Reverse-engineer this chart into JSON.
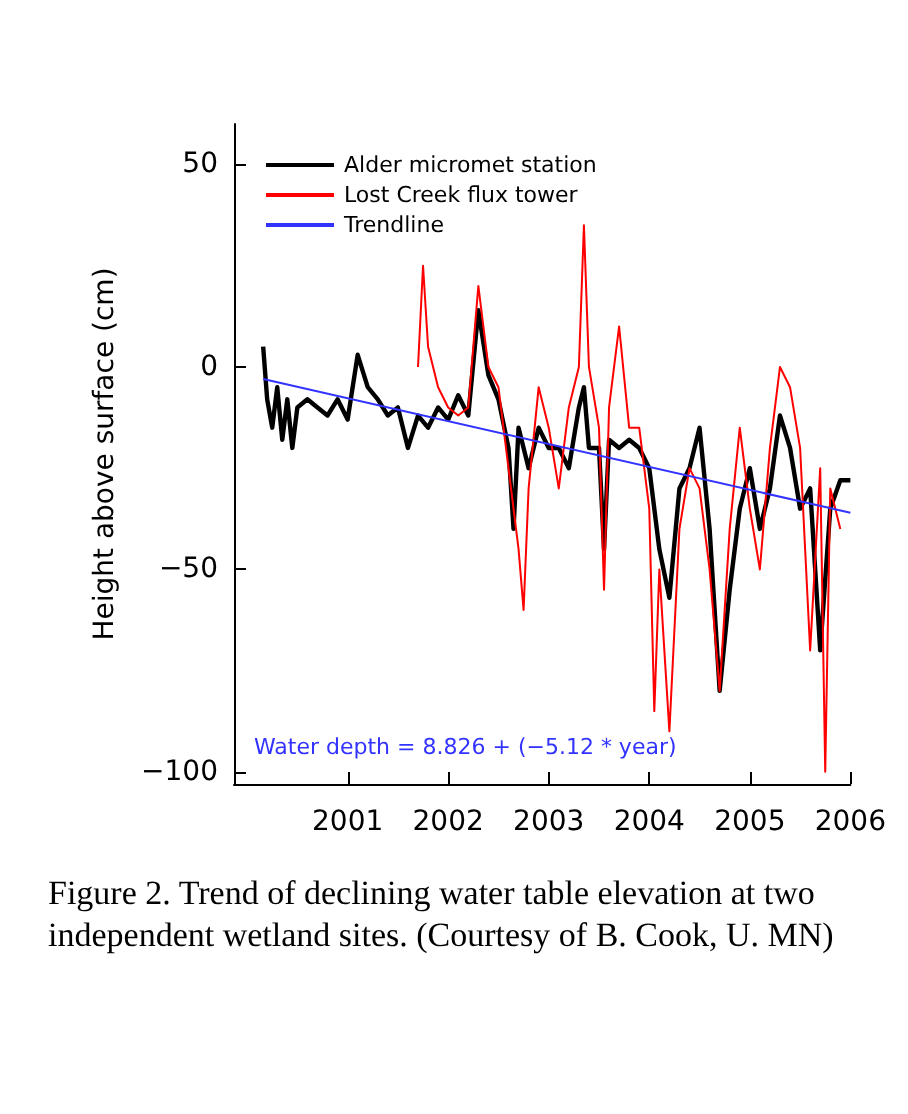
{
  "chart_data": {
    "type": "line",
    "ylabel": "Height above surface (cm)",
    "xlim": [
      1999.87,
      2006.0
    ],
    "ylim": [
      -103,
      60
    ],
    "xticks": [
      2001,
      2002,
      2003,
      2004,
      2005,
      2006
    ],
    "yticks": [
      -100,
      -50,
      0,
      50
    ],
    "grid": false,
    "legend": "top left",
    "marker": "none",
    "line_style": "solid",
    "annotations": [
      "Water depth = 8.826 + (−5.12 * year)",
      "Figure 2. Trend of declining water table elevation at two independent wetland sites. (Courtesy of B. Cook, U. MN)"
    ],
    "series": [
      {
        "name": "Alder micromet station",
        "color": "#000000",
        "x": [
          2000.16,
          2000.2,
          2000.25,
          2000.3,
          2000.35,
          2000.4,
          2000.45,
          2000.5,
          2000.6,
          2000.7,
          2000.8,
          2000.9,
          2001.0,
          2001.1,
          2001.2,
          2001.3,
          2001.4,
          2001.5,
          2001.6,
          2001.7,
          2001.8,
          2001.9,
          2002.0,
          2002.1,
          2002.2,
          2002.3,
          2002.4,
          2002.5,
          2002.6,
          2002.65,
          2002.7,
          2002.8,
          2002.9,
          2003.0,
          2003.1,
          2003.2,
          2003.3,
          2003.35,
          2003.4,
          2003.5,
          2003.55,
          2003.6,
          2003.7,
          2003.8,
          2003.9,
          2004.0,
          2004.1,
          2004.2,
          2004.3,
          2004.4,
          2004.5,
          2004.6,
          2004.7,
          2004.8,
          2004.9,
          2005.0,
          2005.1,
          2005.2,
          2005.3,
          2005.4,
          2005.5,
          2005.6,
          2005.7,
          2005.8,
          2005.9,
          2006.0
        ],
        "values": [
          5,
          -8,
          -15,
          -5,
          -18,
          -8,
          -20,
          -10,
          -8,
          -10,
          -12,
          -8,
          -13,
          3,
          -5,
          -8,
          -12,
          -10,
          -20,
          -12,
          -15,
          -10,
          -13,
          -7,
          -12,
          14,
          -2,
          -8,
          -20,
          -40,
          -15,
          -25,
          -15,
          -20,
          -20,
          -25,
          -10,
          -5,
          -20,
          -20,
          -45,
          -18,
          -20,
          -18,
          -20,
          -25,
          -45,
          -57,
          -30,
          -25,
          -15,
          -40,
          -80,
          -55,
          -35,
          -25,
          -40,
          -30,
          -12,
          -20,
          -35,
          -30,
          -70,
          -35,
          -28,
          -28
        ]
      },
      {
        "name": "Lost Creek flux tower",
        "color": "#ff0000",
        "x": [
          2001.7,
          2001.75,
          2001.8,
          2001.9,
          2002.0,
          2002.1,
          2002.2,
          2002.3,
          2002.4,
          2002.5,
          2002.6,
          2002.7,
          2002.75,
          2002.8,
          2002.9,
          2003.0,
          2003.1,
          2003.2,
          2003.3,
          2003.35,
          2003.4,
          2003.5,
          2003.55,
          2003.6,
          2003.7,
          2003.8,
          2003.9,
          2004.0,
          2004.05,
          2004.1,
          2004.2,
          2004.3,
          2004.4,
          2004.5,
          2004.6,
          2004.7,
          2004.8,
          2004.9,
          2005.0,
          2005.1,
          2005.2,
          2005.3,
          2005.4,
          2005.5,
          2005.6,
          2005.7,
          2005.75,
          2005.8,
          2005.9
        ],
        "values": [
          0,
          25,
          5,
          -5,
          -10,
          -12,
          -10,
          20,
          0,
          -5,
          -25,
          -45,
          -60,
          -30,
          -5,
          -15,
          -30,
          -10,
          0,
          35,
          0,
          -15,
          -55,
          -10,
          10,
          -15,
          -15,
          -35,
          -85,
          -50,
          -90,
          -40,
          -25,
          -30,
          -50,
          -80,
          -40,
          -15,
          -35,
          -50,
          -20,
          0,
          -5,
          -20,
          -70,
          -25,
          -100,
          -30,
          -40
        ]
      },
      {
        "name": "Trendline",
        "color": "#3333ff",
        "x": [
          2000.16,
          2006.0
        ],
        "values": [
          -3,
          -36
        ]
      }
    ]
  }
}
